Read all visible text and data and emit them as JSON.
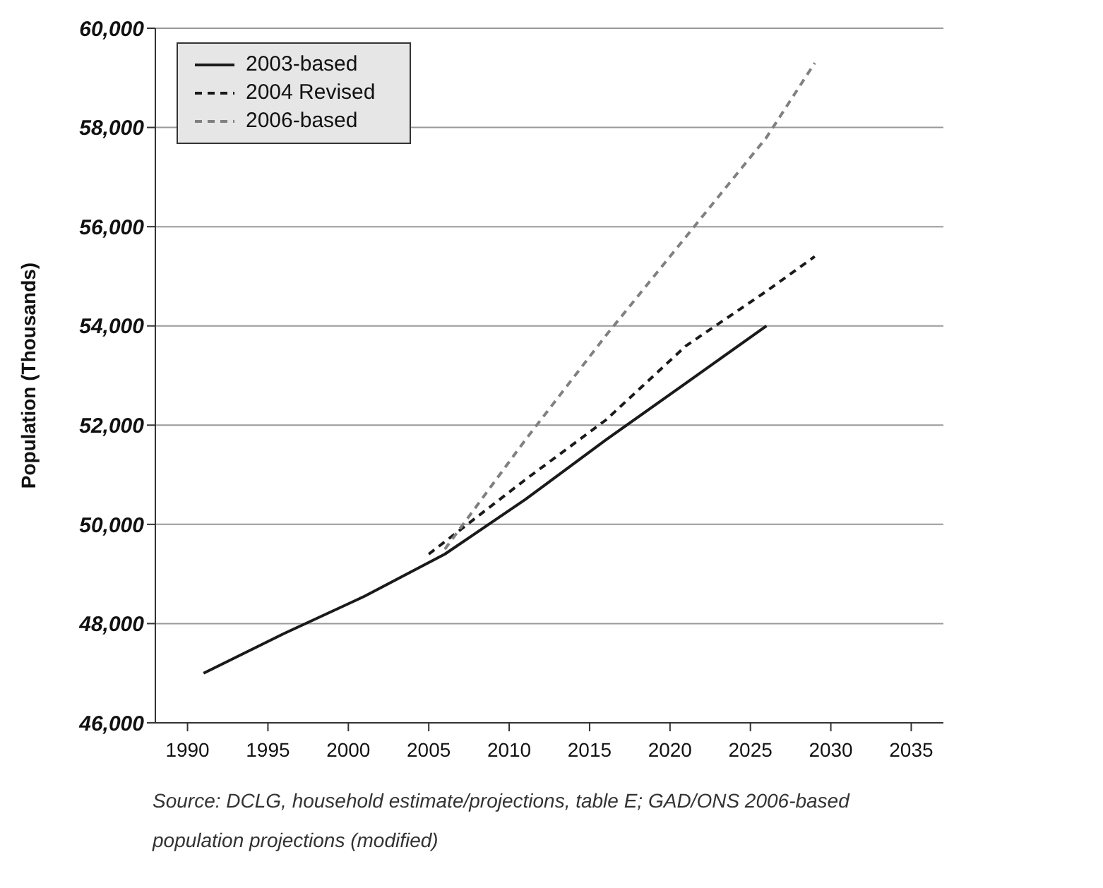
{
  "chart_data": {
    "type": "line",
    "ylabel": "Population (Thousands)",
    "xlim": [
      1988,
      2037
    ],
    "xticks": [
      1990,
      1995,
      2000,
      2005,
      2010,
      2015,
      2020,
      2025,
      2030,
      2035
    ],
    "ylim": [
      46000,
      60000
    ],
    "yticks": [
      {
        "value": 46000,
        "label": "46,000"
      },
      {
        "value": 48000,
        "label": "48,000"
      },
      {
        "value": 50000,
        "label": "50,000"
      },
      {
        "value": 52000,
        "label": "52,000"
      },
      {
        "value": 54000,
        "label": "54,000"
      },
      {
        "value": 56000,
        "label": "56,000"
      },
      {
        "value": 58000,
        "label": "58,000"
      },
      {
        "value": 60000,
        "label": "60,000"
      }
    ],
    "grid": "y",
    "legend": "top left",
    "marker": "none",
    "series": [
      {
        "name": "2003-based",
        "color": "#1a1a1a",
        "line_style": "solid",
        "x": [
          1991,
          1996,
          2001,
          2006,
          2011,
          2016,
          2021,
          2026
        ],
        "values": [
          47000,
          47800,
          48550,
          49400,
          50500,
          51700,
          52850,
          54000
        ]
      },
      {
        "name": "2004 Revised",
        "color": "#1a1a1a",
        "line_style": "dashed",
        "x": [
          2005,
          2011,
          2016,
          2021,
          2026,
          2029
        ],
        "values": [
          49400,
          50900,
          52100,
          53600,
          54700,
          55400
        ]
      },
      {
        "name": "2006-based",
        "color": "#808080",
        "line_style": "dashed",
        "x": [
          2006,
          2011,
          2016,
          2021,
          2026,
          2029
        ],
        "values": [
          49500,
          51700,
          53800,
          55800,
          57800,
          59300
        ]
      }
    ],
    "annotations": [
      "Source: DCLG, household estimate/projections, table E; GAD/ONS 2006-based population projections (modified)"
    ]
  }
}
